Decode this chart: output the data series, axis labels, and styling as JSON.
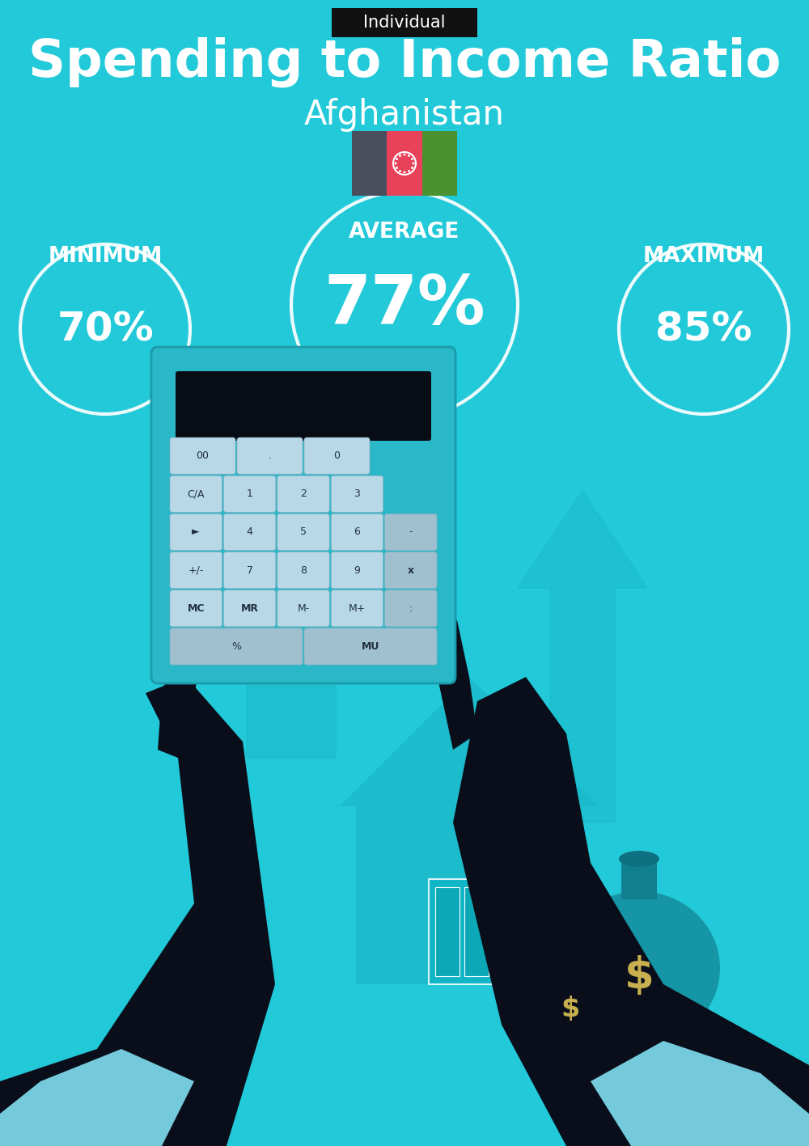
{
  "title_tag": "Individual",
  "title_main": "Spending to Income Ratio",
  "title_sub": "Afghanistan",
  "bg_color": "#22C9D8",
  "tag_bg": "#111111",
  "tag_color": "#ffffff",
  "circle_color": "#ffffff",
  "text_color": "#ffffff",
  "min_label": "MINIMUM",
  "avg_label": "AVERAGE",
  "max_label": "MAXIMUM",
  "min_value": "70%",
  "avg_value": "77%",
  "max_value": "85%",
  "flag_colors": [
    "#4a4f5e",
    "#e8415a",
    "#4a9130"
  ],
  "tag_fontsize": 15,
  "title_fontsize": 46,
  "sub_fontsize": 30,
  "label_fontsize": 19,
  "value_fontsize_small": 36,
  "value_fontsize_large": 60,
  "arrow_color": "#1ab8c8",
  "dark_color": "#0a0e1a",
  "house_color": "#1ab5c5",
  "calc_body": "#2ab5c8",
  "money_color": "#1a8fa0",
  "cuff_color": "#80e0f0",
  "bg_illustration": "#18b5c5"
}
